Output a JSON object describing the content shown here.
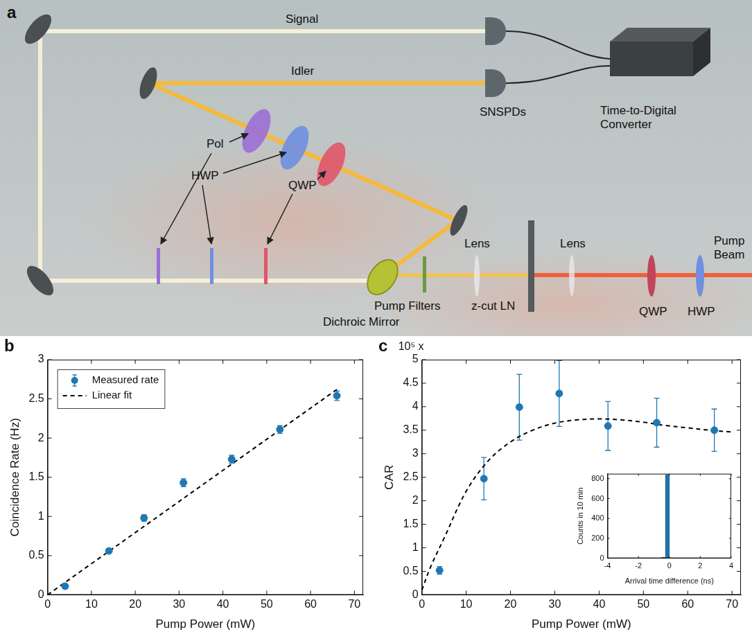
{
  "diagram": {
    "panel_label": "a",
    "texts": {
      "signal": "Signal",
      "idler": "Idler",
      "snspd": "SNSPDs",
      "tdc": "Time-to-Digital Converter",
      "pol": "Pol",
      "hwp": "HWP",
      "qwp": "QWP",
      "dichroic": "Dichroic Mirror",
      "filters": "Pump Filters",
      "lens_1": "Lens",
      "lens_2": "Lens",
      "crystal": "z-cut LN",
      "pump_qwp": "QWP",
      "pump_hwp": "HWP",
      "pump": "Pump Beam"
    }
  },
  "chart_data": [
    {
      "panel_label": "b",
      "type": "scatter",
      "x_label": "Pump Power (mW)",
      "y_label": "Coincidence Rate (Hz)",
      "xlim": [
        0,
        72
      ],
      "xticks": [
        0,
        10,
        20,
        30,
        40,
        50,
        60,
        70
      ],
      "ylim": [
        0,
        3
      ],
      "yticks": [
        0,
        0.5,
        1,
        1.5,
        2,
        2.5,
        3
      ],
      "grid": false,
      "legend": "upper left",
      "series": [
        {
          "name": "Measured rate",
          "type": "scatter",
          "color": "#1f77b4",
          "marker": "circle",
          "x": [
            4,
            14,
            22,
            31,
            42,
            53,
            66
          ],
          "values": [
            0.11,
            0.56,
            0.98,
            1.43,
            1.73,
            2.11,
            2.54
          ],
          "errors": [
            0.03,
            0.02,
            0.04,
            0.05,
            0.05,
            0.05,
            0.06
          ]
        },
        {
          "name": "Linear fit",
          "type": "line",
          "color": "#000000",
          "line_style": "dashed",
          "x": [
            0,
            66
          ],
          "values": [
            0,
            2.62
          ]
        }
      ]
    },
    {
      "panel_label": "c",
      "type": "scatter",
      "y_label": "CAR",
      "x_label": "Pump Power (mW)",
      "y_multiplier": "10⁵ x",
      "xlim": [
        0,
        72
      ],
      "xticks": [
        0,
        10,
        20,
        30,
        40,
        50,
        60,
        70
      ],
      "ylim": [
        0,
        5
      ],
      "yticks": [
        0,
        0.5,
        1,
        1.5,
        2,
        2.5,
        3,
        3.5,
        4,
        4.5,
        5
      ],
      "grid": false,
      "series": [
        {
          "type": "scatter",
          "color": "#1f77b4",
          "marker": "circle",
          "x": [
            4,
            14,
            22,
            31,
            42,
            53,
            66
          ],
          "values": [
            0.52,
            2.47,
            3.99,
            4.28,
            3.59,
            3.66,
            3.5
          ],
          "errors": [
            0.08,
            0.45,
            0.7,
            0.7,
            0.52,
            0.52,
            0.45
          ]
        },
        {
          "type": "line",
          "color": "#000000",
          "line_style": "dashed",
          "x": [
            0,
            2,
            5,
            10,
            15,
            20,
            25,
            30,
            35,
            40,
            45,
            50,
            55,
            60,
            65,
            70
          ],
          "values": [
            0.1,
            0.6,
            1.2,
            2.2,
            2.85,
            3.25,
            3.5,
            3.65,
            3.72,
            3.74,
            3.72,
            3.67,
            3.6,
            3.55,
            3.5,
            3.46
          ]
        }
      ]
    },
    {
      "type": "histogram",
      "x_label": "Arrival time difference (ns)",
      "y_label": "Counts in 10 min",
      "color": "#1f77b4",
      "grid": false,
      "xlim": [
        -4,
        4
      ],
      "xticks": [
        -4,
        -2,
        0,
        2,
        4
      ],
      "ylim": [
        0,
        850
      ],
      "yticks": [
        0,
        200,
        400,
        600,
        800
      ],
      "bins": [
        -4,
        -3.75,
        -3.5,
        -3.25,
        -3,
        -2.75,
        -2.5,
        -2.25,
        -2,
        -1.75,
        -1.5,
        -1.25,
        -1,
        -0.75,
        -0.5,
        -0.25,
        0,
        0.25,
        0.5,
        0.75,
        1,
        1.25,
        1.5,
        1.75,
        2,
        2.25,
        2.5,
        2.75,
        3,
        3.25,
        3.5,
        3.75,
        4
      ],
      "counts": [
        0,
        0,
        0,
        0,
        0,
        0,
        0,
        0,
        0,
        0,
        0,
        0,
        0,
        0,
        8,
        840,
        4,
        0,
        0,
        0,
        0,
        0,
        0,
        0,
        0,
        0,
        0,
        0,
        0,
        0,
        0,
        0
      ]
    }
  ]
}
